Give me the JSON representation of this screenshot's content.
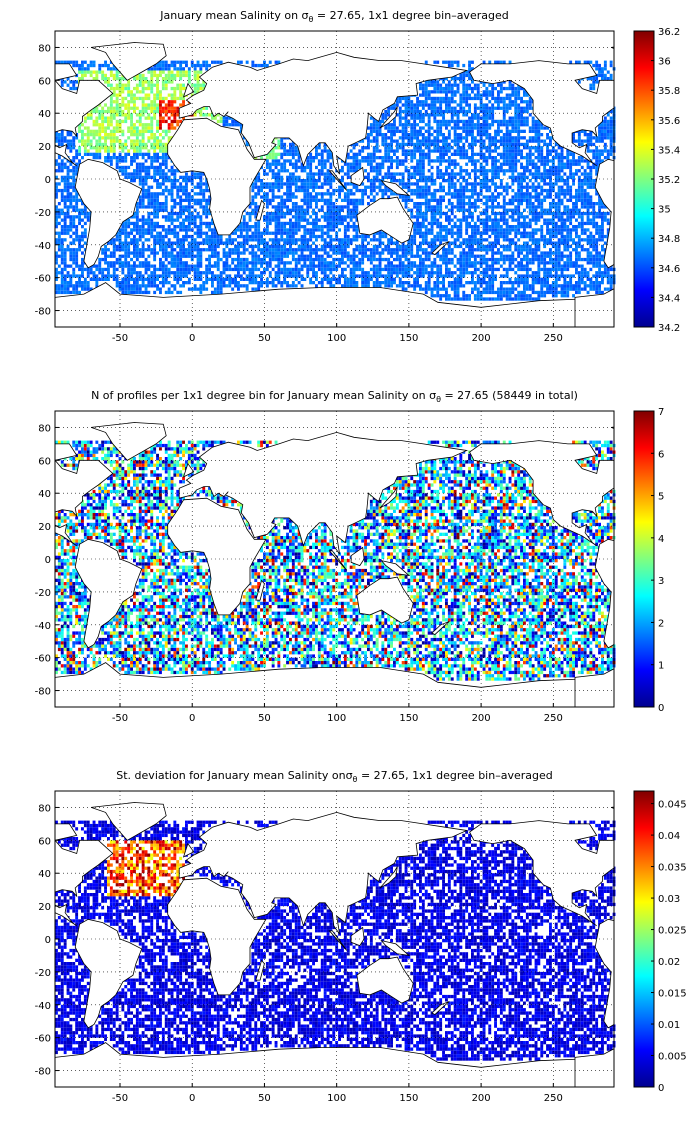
{
  "figure": {
    "panels": [
      {
        "title": "January mean Salinity on σθ = 27.65, 1x1 degree bin–averaged",
        "title_parts": [
          "January mean Salinity on σ",
          "θ",
          " = 27.65, 1x1 degree bin–averaged"
        ],
        "x_ticks": [
          "-50",
          "0",
          "50",
          "100",
          "150",
          "200",
          "250"
        ],
        "y_ticks": [
          "80",
          "60",
          "40",
          "20",
          "0",
          "-20",
          "-40",
          "-60",
          "-80"
        ],
        "colorbar_ticks": [
          "36.2",
          "36",
          "35.8",
          "35.6",
          "35.4",
          "35.2",
          "35",
          "34.8",
          "34.6",
          "34.4",
          "34.2"
        ]
      },
      {
        "title": "N of profiles per 1x1 degree bin for January mean Salinity on σθ = 27.65 (58449 in total)",
        "title_parts": [
          "N of profiles per 1x1 degree bin for January mean Salinity on σ",
          "θ",
          " = 27.65 (58449 in total)"
        ],
        "x_ticks": [
          "-50",
          "0",
          "50",
          "100",
          "150",
          "200",
          "250"
        ],
        "y_ticks": [
          "80",
          "60",
          "40",
          "20",
          "0",
          "-20",
          "-40",
          "-60",
          "-80"
        ],
        "colorbar_ticks": [
          "7",
          "6",
          "5",
          "4",
          "3",
          "2",
          "1",
          "0"
        ]
      },
      {
        "title": "St. deviation for January mean Salinity onσθ = 27.65, 1x1 degree bin–averaged",
        "title_parts": [
          "St. deviation for January mean Salinity onσ",
          "θ",
          " = 27.65, 1x1 degree bin–averaged"
        ],
        "x_ticks": [
          "-50",
          "0",
          "50",
          "100",
          "150",
          "200",
          "250"
        ],
        "y_ticks": [
          "80",
          "60",
          "40",
          "20",
          "0",
          "-20",
          "-40",
          "-60",
          "-80"
        ],
        "colorbar_ticks": [
          "0.045",
          "0.04",
          "0.035",
          "0.03",
          "0.025",
          "0.02",
          "0.015",
          "0.01",
          "0.005",
          "0"
        ]
      }
    ]
  },
  "map": {
    "lon_range": [
      -95,
      292
    ],
    "lat_range": [
      -90,
      90
    ],
    "colormap": "jet",
    "colormap_stops": [
      "#00008f",
      "#0000ff",
      "#00ffff",
      "#ffff00",
      "#ff0000",
      "#800000"
    ],
    "land_fill": "#ffffff",
    "coast_color": "#000000",
    "grid_style": "dotted"
  },
  "chart_data": [
    {
      "type": "heatmap",
      "title": "January mean Salinity on σθ = 27.65, 1x1 degree bin–averaged",
      "xlabel": "",
      "ylabel": "",
      "xlim": [
        -95,
        292
      ],
      "ylim": [
        -90,
        90
      ],
      "clim": [
        34.2,
        36.2
      ],
      "x_ticks": [
        -50,
        0,
        50,
        100,
        150,
        200,
        250
      ],
      "y_ticks": [
        80,
        60,
        40,
        20,
        0,
        -20,
        -40,
        -60,
        -80
      ],
      "grid": true
    },
    {
      "type": "heatmap",
      "title": "N of profiles per 1x1 degree bin for January mean Salinity on σθ = 27.65 (58449 in total)",
      "xlabel": "",
      "ylabel": "",
      "xlim": [
        -95,
        292
      ],
      "ylim": [
        -90,
        90
      ],
      "clim": [
        0,
        7
      ],
      "x_ticks": [
        -50,
        0,
        50,
        100,
        150,
        200,
        250
      ],
      "y_ticks": [
        80,
        60,
        40,
        20,
        0,
        -20,
        -40,
        -60,
        -80
      ],
      "grid": true
    },
    {
      "type": "heatmap",
      "title": "St. deviation for January mean Salinity onσθ = 27.65, 1x1 degree bin–averaged",
      "xlabel": "",
      "ylabel": "",
      "xlim": [
        -95,
        292
      ],
      "ylim": [
        -90,
        90
      ],
      "clim": [
        0,
        0.047
      ],
      "x_ticks": [
        -50,
        0,
        50,
        100,
        150,
        200,
        250
      ],
      "y_ticks": [
        80,
        60,
        40,
        20,
        0,
        -20,
        -40,
        -60,
        -80
      ],
      "grid": true
    }
  ]
}
